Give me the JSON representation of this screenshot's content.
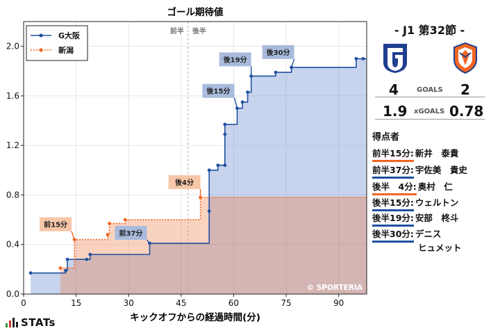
{
  "chart_data": {
    "type": "line",
    "title": "ゴール期待値",
    "xlabel": "キックオフからの経過時間(分)",
    "ylabel": "",
    "xlim": [
      0,
      98
    ],
    "ylim": [
      0,
      2.2
    ],
    "x_ticks": [
      0,
      15,
      30,
      45,
      60,
      75,
      90
    ],
    "y_ticks": [
      "0.0",
      "0.4",
      "0.8",
      "1.2",
      "1.6",
      "2.0"
    ],
    "halftime_minute": 47,
    "halftime_labels": [
      "前半",
      "後半"
    ],
    "legend_position": "top-left",
    "grid": true,
    "watermark": "© SPORTERIA",
    "series": [
      {
        "name": "G大阪",
        "color": "#1f4fa0",
        "fill": "#c9d6ec",
        "line_style": "solid",
        "points": [
          [
            2,
            0.17
          ],
          [
            12,
            0.19
          ],
          [
            12.5,
            0.28
          ],
          [
            18,
            0.28
          ],
          [
            19,
            0.32
          ],
          [
            36,
            0.41
          ],
          [
            53,
            0.67
          ],
          [
            53,
            1.0
          ],
          [
            55.5,
            1.04
          ],
          [
            57.5,
            1.04
          ],
          [
            57.5,
            1.29
          ],
          [
            57.5,
            1.37
          ],
          [
            61,
            1.5
          ],
          [
            62.5,
            1.55
          ],
          [
            64,
            1.63
          ],
          [
            65,
            1.76
          ],
          [
            72,
            1.79
          ],
          [
            76.5,
            1.83
          ],
          [
            95,
            1.9
          ],
          [
            97,
            1.9
          ]
        ]
      },
      {
        "name": "新潟",
        "color": "#f26522",
        "fill": "#f7c9b3",
        "line_style": "dotted",
        "points": [
          [
            10.5,
            0.21
          ],
          [
            14.5,
            0.44
          ],
          [
            24,
            0.48
          ],
          [
            24.5,
            0.57
          ],
          [
            29,
            0.6
          ],
          [
            50.5,
            0.78
          ]
        ]
      }
    ],
    "annotations": [
      {
        "label": "前15分",
        "series": "新潟",
        "x": 14.5,
        "y": 0.44
      },
      {
        "label": "前37分",
        "series": "G大阪",
        "x": 36,
        "y": 0.41
      },
      {
        "label": "後4分",
        "series": "新潟",
        "x": 50.5,
        "y": 0.78
      },
      {
        "label": "後15分",
        "series": "G大阪",
        "x": 61,
        "y": 1.5
      },
      {
        "label": "後19分",
        "series": "G大阪",
        "x": 65,
        "y": 1.76
      },
      {
        "label": "後30分",
        "series": "G大阪",
        "x": 76.5,
        "y": 1.83
      }
    ]
  },
  "match": {
    "title": "-  J1 第32節  -",
    "home_goals": "4",
    "away_goals": "2",
    "goals_label": "GOALS",
    "home_xg": "1.9",
    "away_xg": "0.78",
    "xg_label": "xGOALS"
  },
  "scorers_title": "得点者",
  "scorers": [
    {
      "time": "前半15分:",
      "name": "新井　泰貴",
      "color": "#f26522"
    },
    {
      "time": "前半37分:",
      "name": "宇佐美　貴史",
      "color": "#1f4fa0"
    },
    {
      "time": "後半　4分:",
      "name": "奥村　仁",
      "color": "#f26522"
    },
    {
      "time": "後半15分:",
      "name": "ウェルトン",
      "color": "#1f4fa0"
    },
    {
      "time": "後半19分:",
      "name": "安部　柊斗",
      "color": "#1f4fa0"
    },
    {
      "time": "後半30分:",
      "name": "デニス",
      "name2": "ヒュメット",
      "color": "#1f4fa0"
    }
  ],
  "brand": "STATs",
  "icons": {
    "home": "gamba-osaka-emblem-icon",
    "away": "albirex-niigata-emblem-icon",
    "logo": "stats-bars-icon"
  }
}
